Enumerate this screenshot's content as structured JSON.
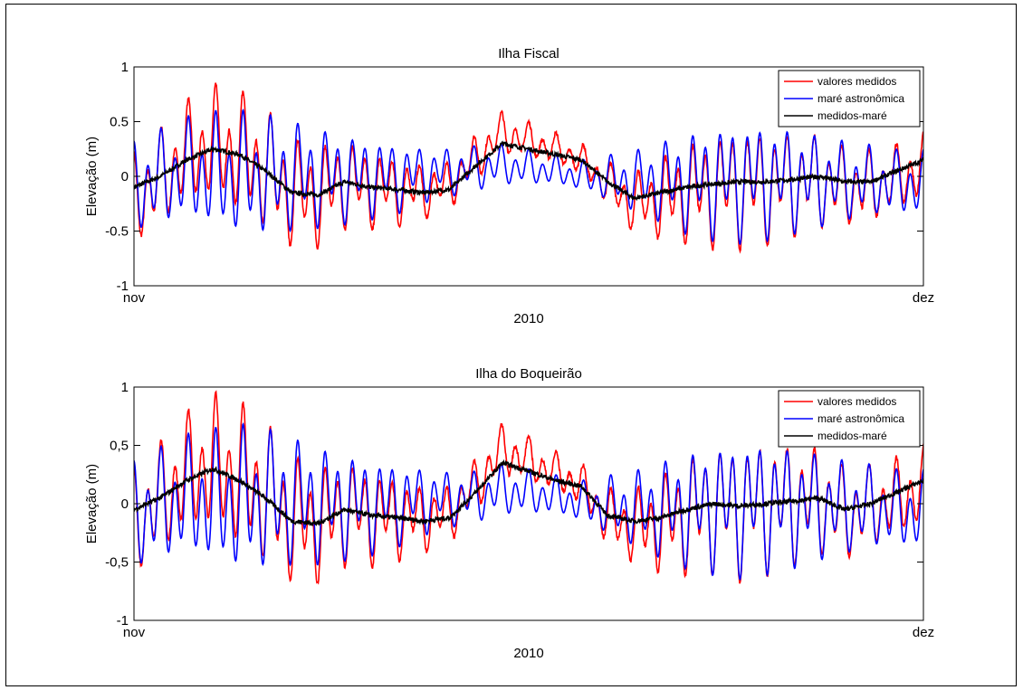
{
  "chart_data": [
    {
      "type": "line",
      "title": "Ilha Fiscal",
      "xlabel": "2010",
      "ylabel": "Elevação (m)",
      "ylim": [
        -1,
        1
      ],
      "yticks": [
        "-1",
        "-0.5",
        "0",
        "0.5",
        "1"
      ],
      "x_tick_labels": [
        "nov",
        "dez"
      ],
      "grid": false,
      "legend_position": "top-right",
      "x_units": "days",
      "x_range": [
        0,
        30
      ],
      "series": [
        {
          "name": "valores medidos",
          "color": "#ff0000"
        },
        {
          "name": "maré astronômica",
          "color": "#0000ff"
        },
        {
          "name": "medidos-maré",
          "color": "#000000",
          "x": [
            0,
            1,
            2,
            3,
            4,
            5,
            6,
            7,
            8,
            9,
            10,
            11,
            12,
            13,
            14,
            15,
            16,
            17,
            18,
            19,
            20,
            21,
            22,
            23,
            24,
            25,
            26,
            27,
            28,
            29,
            30
          ],
          "values": [
            -0.1,
            0.0,
            0.15,
            0.25,
            0.2,
            0.05,
            -0.15,
            -0.17,
            -0.05,
            -0.1,
            -0.12,
            -0.15,
            -0.12,
            0.1,
            0.3,
            0.25,
            0.2,
            0.15,
            -0.05,
            -0.2,
            -0.15,
            -0.1,
            -0.07,
            -0.05,
            -0.05,
            -0.03,
            0.0,
            -0.05,
            -0.05,
            0.05,
            0.15
          ]
        }
      ],
      "envelope": {
        "x": [
          0,
          1,
          2,
          3,
          4,
          5,
          6,
          7,
          8,
          9,
          10,
          11,
          12,
          13,
          14,
          15,
          16,
          17,
          18,
          19,
          20,
          21,
          22,
          23,
          24,
          25,
          26,
          27,
          28,
          29,
          30
        ],
        "tide_high": [
          0.35,
          0.45,
          0.55,
          0.6,
          0.62,
          0.6,
          0.55,
          0.5,
          0.45,
          0.4,
          0.35,
          0.3,
          0.28,
          0.3,
          0.3,
          0.25,
          0.2,
          0.15,
          0.2,
          0.25,
          0.35,
          0.45,
          0.52,
          0.57,
          0.55,
          0.5,
          0.42,
          0.35,
          0.3,
          0.25,
          0.25
        ],
        "tide_low": [
          -0.55,
          -0.5,
          -0.45,
          -0.55,
          -0.6,
          -0.58,
          -0.55,
          -0.5,
          -0.45,
          -0.4,
          -0.35,
          -0.25,
          -0.2,
          -0.15,
          -0.1,
          -0.1,
          -0.1,
          -0.15,
          -0.25,
          -0.35,
          -0.45,
          -0.55,
          -0.6,
          -0.62,
          -0.6,
          -0.55,
          -0.5,
          -0.45,
          -0.4,
          -0.4,
          -0.4
        ],
        "semidiurnal_period_days": 0.5175,
        "diurnal_period_days": 1.0758,
        "diurnal_fraction": 0.35
      }
    },
    {
      "type": "line",
      "title": "Ilha do Boqueirão",
      "xlabel": "2010",
      "ylabel": "Elevação (m)",
      "ylim": [
        -1,
        1
      ],
      "yticks": [
        "-1",
        "-0,5",
        "0",
        "0,5",
        "1"
      ],
      "x_tick_labels": [
        "nov",
        "dez"
      ],
      "grid": false,
      "legend_position": "top-right",
      "x_units": "days",
      "x_range": [
        0,
        30
      ],
      "series": [
        {
          "name": "valores medidos",
          "color": "#ff0000"
        },
        {
          "name": "maré astronômica",
          "color": "#0000ff"
        },
        {
          "name": "medidos-maré",
          "color": "#000000",
          "x": [
            0,
            1,
            2,
            3,
            4,
            5,
            6,
            7,
            8,
            9,
            10,
            11,
            12,
            13,
            14,
            15,
            16,
            17,
            18,
            19,
            20,
            21,
            22,
            23,
            24,
            25,
            26,
            27,
            28,
            29,
            30
          ],
          "values": [
            -0.05,
            0.05,
            0.2,
            0.3,
            0.2,
            0.05,
            -0.15,
            -0.17,
            -0.05,
            -0.1,
            -0.12,
            -0.15,
            -0.12,
            0.1,
            0.35,
            0.28,
            0.2,
            0.15,
            -0.1,
            -0.15,
            -0.12,
            -0.05,
            0.0,
            -0.02,
            0.0,
            0.02,
            0.05,
            -0.05,
            0.0,
            0.1,
            0.2
          ]
        }
      ],
      "envelope": {
        "x": [
          0,
          1,
          2,
          3,
          4,
          5,
          6,
          7,
          8,
          9,
          10,
          11,
          12,
          13,
          14,
          15,
          16,
          17,
          18,
          19,
          20,
          21,
          22,
          23,
          24,
          25,
          26,
          27,
          28,
          29,
          30
        ],
        "tide_high": [
          0.4,
          0.5,
          0.6,
          0.65,
          0.7,
          0.68,
          0.62,
          0.55,
          0.5,
          0.45,
          0.4,
          0.35,
          0.3,
          0.3,
          0.35,
          0.3,
          0.25,
          0.2,
          0.25,
          0.3,
          0.4,
          0.5,
          0.58,
          0.63,
          0.62,
          0.55,
          0.48,
          0.4,
          0.35,
          0.3,
          0.3
        ],
        "tide_low": [
          -0.6,
          -0.55,
          -0.5,
          -0.6,
          -0.65,
          -0.62,
          -0.58,
          -0.55,
          -0.5,
          -0.45,
          -0.38,
          -0.28,
          -0.22,
          -0.18,
          -0.12,
          -0.12,
          -0.12,
          -0.18,
          -0.3,
          -0.4,
          -0.5,
          -0.58,
          -0.62,
          -0.65,
          -0.62,
          -0.58,
          -0.52,
          -0.48,
          -0.42,
          -0.42,
          -0.45
        ],
        "semidiurnal_period_days": 0.5175,
        "diurnal_period_days": 1.0758,
        "diurnal_fraction": 0.35
      }
    }
  ]
}
